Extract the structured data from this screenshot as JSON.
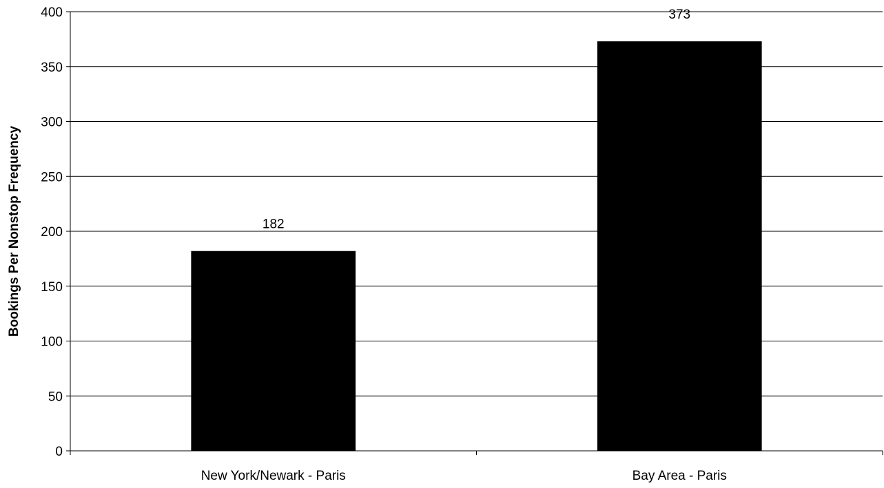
{
  "chart_data": {
    "type": "bar",
    "title": "",
    "xlabel": "",
    "ylabel": "Bookings Per Nonstop Frequency",
    "categories": [
      "New York/Newark - Paris",
      "Bay Area - Paris"
    ],
    "values": [
      182,
      373
    ],
    "data_labels": [
      "182",
      "373"
    ],
    "ylim": [
      0,
      400
    ],
    "yticks": [
      0,
      50,
      100,
      150,
      200,
      250,
      300,
      350,
      400
    ],
    "grid": true,
    "bar_color": "#000000",
    "grid_color": "#000000"
  }
}
